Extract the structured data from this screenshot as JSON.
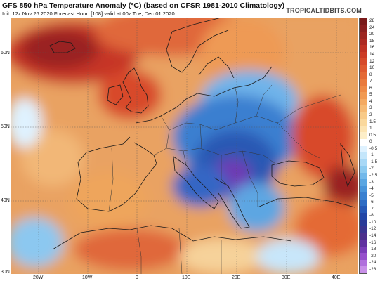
{
  "title": "GFS 850 hPa Temperature Anomaly (°C) (based on CFSR 1981-2010 Climatology)",
  "subtitle": "Init: 12z Nov 26 2020   Forecast Hour: [108]   valid at 00z Tue, Dec 01 2020",
  "site": "TROPICALTIDBITS.COM",
  "lat_labels": [
    "60N",
    "50N",
    "40N",
    "30N"
  ],
  "lon_labels": [
    "20W",
    "10W",
    "0",
    "10E",
    "20E",
    "30E",
    "40E"
  ],
  "scale": {
    "labels": [
      "28",
      "24",
      "20",
      "18",
      "16",
      "14",
      "12",
      "10",
      "8",
      "7",
      "6",
      "5",
      "4",
      "3",
      "2",
      "1.5",
      "1",
      "0.5",
      "0",
      "-0.5",
      "-1",
      "-1.5",
      "-2",
      "-2.5",
      "-3",
      "-4",
      "-5",
      "-6",
      "-7",
      "-8",
      "-10",
      "-12",
      "-14",
      "-16",
      "-18",
      "-20",
      "-24",
      "-28"
    ],
    "colors": [
      "#7a1a1a",
      "#8a1f1f",
      "#9c2520",
      "#ad2a22",
      "#bf3224",
      "#cc3c26",
      "#d64a2a",
      "#de5a30",
      "#e46a36",
      "#e97a3d",
      "#ee8a46",
      "#f19a52",
      "#f4aa62",
      "#f6ba74",
      "#f8ca88",
      "#fad89c",
      "#fce4b2",
      "#fdeec8",
      "#ffffff",
      "#dff2ff",
      "#c4e6fb",
      "#a8d8f6",
      "#8ccaf0",
      "#72b8ea",
      "#5aa6e2",
      "#4894da",
      "#3a80d0",
      "#2e6cc4",
      "#2658b6",
      "#2246a6",
      "#2a3a98",
      "#3a3490",
      "#4c2f8c",
      "#6030a0",
      "#7a3cb8",
      "#9650cc",
      "#b070dc",
      "#c890e8"
    ]
  },
  "map": {
    "ocean_color": "#e9a262",
    "coast_color": "#1a1a1a",
    "border_color": "#333333"
  }
}
